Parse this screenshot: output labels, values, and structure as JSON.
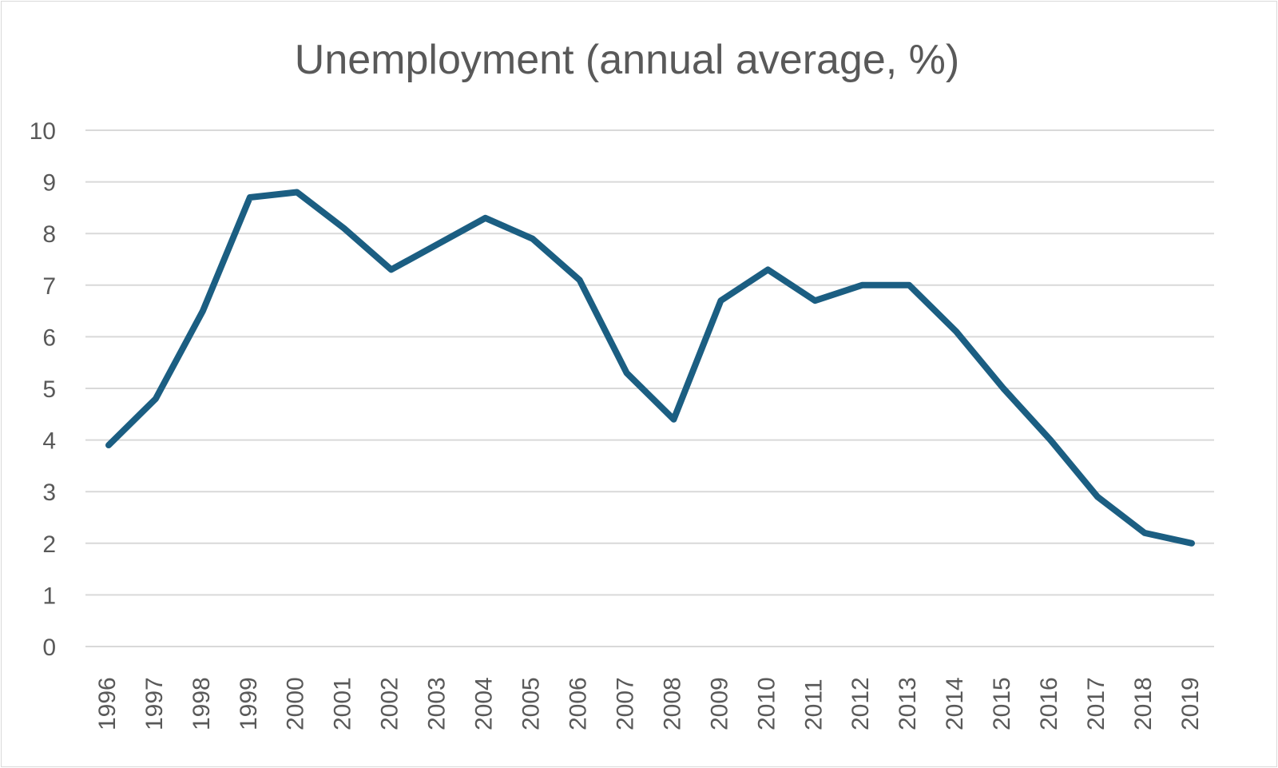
{
  "chart_data": {
    "type": "line",
    "title": "Unemployment (annual average, %)",
    "xlabel": "",
    "ylabel": "",
    "categories": [
      "1996",
      "1997",
      "1998",
      "1999",
      "2000",
      "2001",
      "2002",
      "2003",
      "2004",
      "2005",
      "2006",
      "2007",
      "2008",
      "2009",
      "2010",
      "2011",
      "2012",
      "2013",
      "2014",
      "2015",
      "2016",
      "2017",
      "2018",
      "2019"
    ],
    "series": [
      {
        "values": [
          3.9,
          4.8,
          6.5,
          8.7,
          8.8,
          8.1,
          7.3,
          7.8,
          8.3,
          7.9,
          7.1,
          5.3,
          4.4,
          6.7,
          7.3,
          6.7,
          7.0,
          7.0,
          6.1,
          5.0,
          4.0,
          2.9,
          2.2,
          2.0
        ],
        "color": "#1b5e82"
      }
    ],
    "ylim": [
      0,
      10
    ],
    "yticks": [
      "0",
      "1",
      "2",
      "3",
      "4",
      "5",
      "6",
      "7",
      "8",
      "9",
      "10"
    ],
    "grid": "horizontal",
    "legend": "none"
  }
}
